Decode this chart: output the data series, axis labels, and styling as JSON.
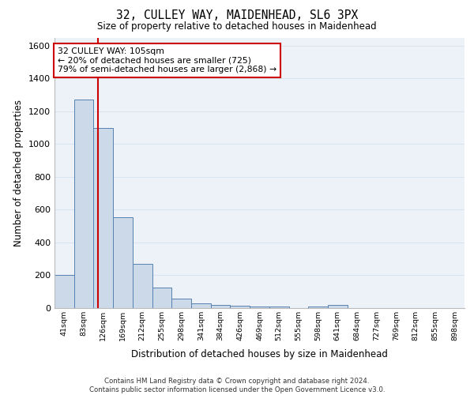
{
  "title_line1": "32, CULLEY WAY, MAIDENHEAD, SL6 3PX",
  "title_line2": "Size of property relative to detached houses in Maidenhead",
  "xlabel": "Distribution of detached houses by size in Maidenhead",
  "ylabel": "Number of detached properties",
  "bin_labels": [
    "41sqm",
    "83sqm",
    "126sqm",
    "169sqm",
    "212sqm",
    "255sqm",
    "298sqm",
    "341sqm",
    "384sqm",
    "426sqm",
    "469sqm",
    "512sqm",
    "555sqm",
    "598sqm",
    "641sqm",
    "684sqm",
    "727sqm",
    "769sqm",
    "812sqm",
    "855sqm",
    "898sqm"
  ],
  "bin_values": [
    200,
    1270,
    1100,
    555,
    270,
    125,
    60,
    30,
    20,
    15,
    10,
    10,
    0,
    10,
    20,
    0,
    0,
    0,
    0,
    0,
    0
  ],
  "bar_color": "#ccd9e8",
  "bar_edge_color": "#5580b0",
  "vline_x": 1.72,
  "vline_color": "#cc0000",
  "annotation_text": "32 CULLEY WAY: 105sqm\n← 20% of detached houses are smaller (725)\n79% of semi-detached houses are larger (2,868) →",
  "annotation_box_color": "white",
  "annotation_box_edge_color": "#cc0000",
  "footnote": "Contains HM Land Registry data © Crown copyright and database right 2024.\nContains public sector information licensed under the Open Government Licence v3.0.",
  "ylim": [
    0,
    1650
  ],
  "yticks": [
    0,
    200,
    400,
    600,
    800,
    1000,
    1200,
    1400,
    1600
  ],
  "grid_color": "#d8e4f0",
  "bg_color": "#edf2f8"
}
